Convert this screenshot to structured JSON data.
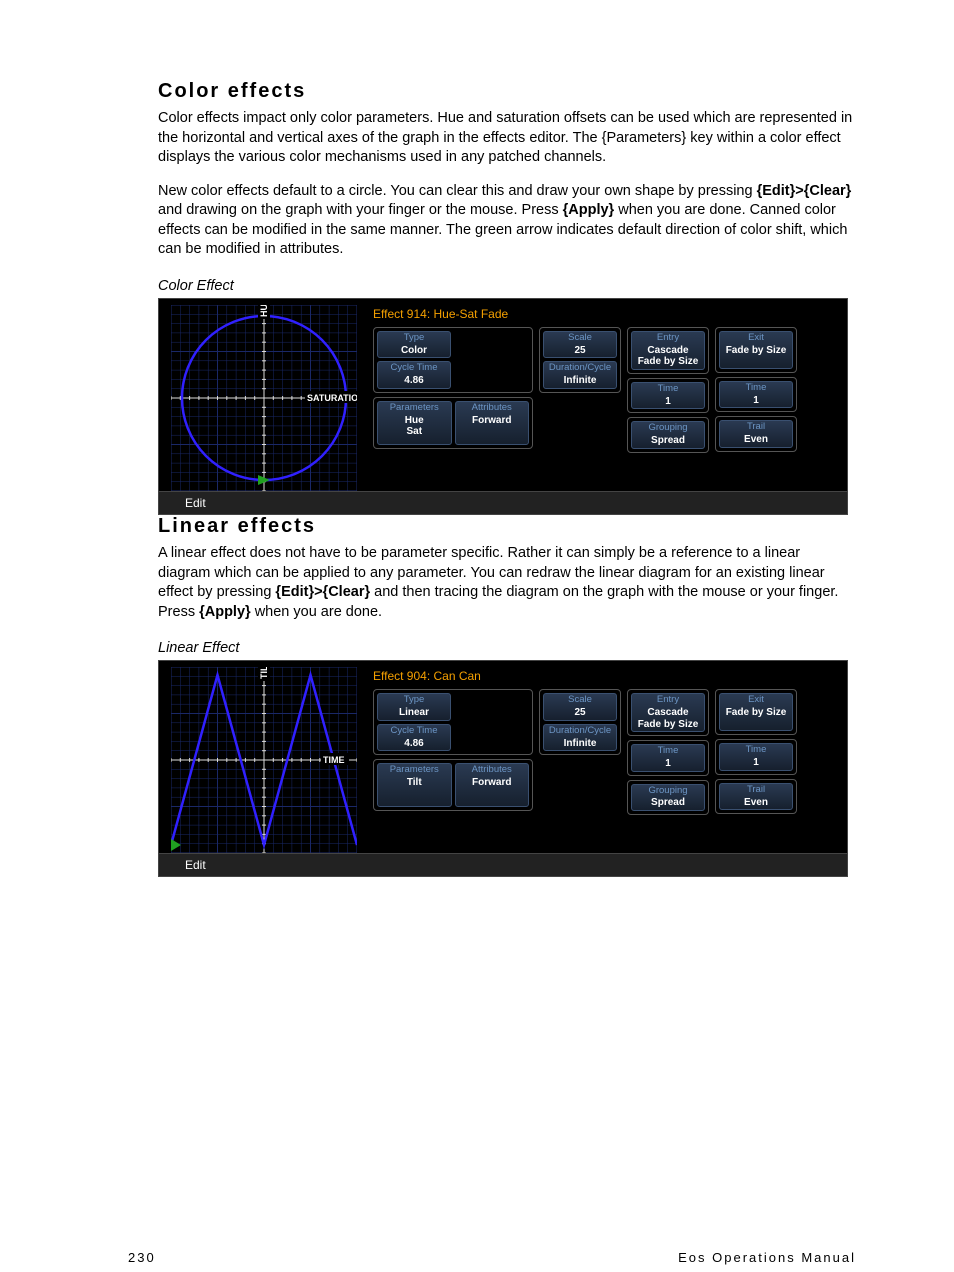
{
  "section1": {
    "heading": "Color effects",
    "para1": "Color effects impact only color parameters. Hue and saturation offsets can be used which are represented in the horizontal and vertical axes of the graph in the effects editor. The {Parameters} key within a color effect displays the various color mechanisms used in any patched channels.",
    "para2_a": "New color effects default to a circle. You can clear this and draw your own shape by pressing ",
    "para2_bold1": "{Edit}>{Clear}",
    "para2_b": " and drawing on the graph with your finger or the mouse. Press ",
    "para2_bold2": "{Apply}",
    "para2_c": " when you are done. Canned color effects can be modified in the same manner. The green arrow indicates default direction of color shift, which can be modified in attributes.",
    "caption": "Color Effect"
  },
  "screenshot1": {
    "effect_title": "Effect 914: Hue-Sat Fade",
    "graph": {
      "y_axis_label": "HUE",
      "x_axis_label": "SATURATION",
      "grid_color": "#1a2868",
      "axis_color": "#dcdcdc",
      "shape": "circle",
      "shape_color": "#3020ff",
      "arrow_color": "#20a020",
      "label_bg": "#000",
      "label_color": "#fff"
    },
    "col1_group1": [
      {
        "lbl": "Type",
        "val": "Color"
      },
      {
        "lbl": "Cycle Time",
        "val": "4.86"
      }
    ],
    "col2_group1": [
      {
        "lbl": "Scale",
        "val": "25"
      },
      {
        "lbl": "Duration/Cycle",
        "val": "Infinite"
      }
    ],
    "param_left": {
      "lbl": "Parameters",
      "val": "Hue\nSat"
    },
    "param_right": {
      "lbl": "Attributes",
      "val": "Forward"
    },
    "col3_group1": [
      {
        "lbl": "Entry",
        "val": "Cascade\nFade by Size"
      }
    ],
    "col4_group1": [
      {
        "lbl": "Exit",
        "val": "Fade by Size"
      }
    ],
    "col3_group2": [
      {
        "lbl": "Time",
        "val": "1"
      }
    ],
    "col4_group2": [
      {
        "lbl": "Time",
        "val": "1"
      }
    ],
    "col3_group3": [
      {
        "lbl": "Grouping",
        "val": "Spread"
      }
    ],
    "col4_group3": [
      {
        "lbl": "Trail",
        "val": "Even"
      }
    ],
    "edit": "Edit"
  },
  "section2": {
    "heading": "Linear effects",
    "para_a": "A linear effect does not have to be parameter specific. Rather it can simply be a reference to a linear diagram which can be applied to any parameter. You can redraw the linear diagram for an existing linear effect by pressing ",
    "para_bold1": "{Edit}>{Clear}",
    "para_b": " and then tracing the diagram on the graph with the mouse or your finger. Press ",
    "para_bold2": "{Apply}",
    "para_c": " when you are done.",
    "caption": "Linear Effect"
  },
  "screenshot2": {
    "effect_title": "Effect 904: Can Can",
    "graph": {
      "y_axis_label": "TILT",
      "x_axis_label": "TIME",
      "grid_color": "#1a2868",
      "axis_color": "#dcdcdc",
      "shape": "linear",
      "shape_color": "#3020ff",
      "arrow_color": "#20a020",
      "label_bg": "#000",
      "label_color": "#fff"
    },
    "col1_group1": [
      {
        "lbl": "Type",
        "val": "Linear"
      },
      {
        "lbl": "Cycle Time",
        "val": "4.86"
      }
    ],
    "col2_group1": [
      {
        "lbl": "Scale",
        "val": "25"
      },
      {
        "lbl": "Duration/Cycle",
        "val": "Infinite"
      }
    ],
    "param_left": {
      "lbl": "Parameters",
      "val": "Tilt"
    },
    "param_right": {
      "lbl": "Attributes",
      "val": "Forward"
    },
    "col3_group1": [
      {
        "lbl": "Entry",
        "val": "Cascade\nFade by Size"
      }
    ],
    "col4_group1": [
      {
        "lbl": "Exit",
        "val": "Fade by Size"
      }
    ],
    "col3_group2": [
      {
        "lbl": "Time",
        "val": "1"
      }
    ],
    "col4_group2": [
      {
        "lbl": "Time",
        "val": "1"
      }
    ],
    "col3_group3": [
      {
        "lbl": "Grouping",
        "val": "Spread"
      }
    ],
    "col4_group3": [
      {
        "lbl": "Trail",
        "val": "Even"
      }
    ],
    "edit": "Edit"
  },
  "footer": {
    "page_num": "230",
    "manual": "Eos Operations Manual"
  },
  "colors": {
    "heading_accent": "#f5a000",
    "tile_label": "#6c95c4"
  }
}
